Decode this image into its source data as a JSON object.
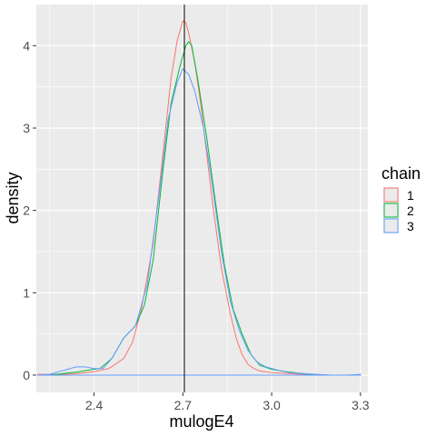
{
  "chart_data": {
    "type": "line",
    "xlabel": "mulogE4",
    "ylabel": "density",
    "xlim": [
      2.205,
      3.325
    ],
    "ylim": [
      -0.21,
      4.5
    ],
    "x_ticks": [
      2.4,
      2.7,
      3.0,
      3.3
    ],
    "x_tick_labels": [
      "2.4",
      "2.7",
      "3.0",
      "3.3"
    ],
    "y_ticks": [
      0,
      1,
      2,
      3,
      4
    ],
    "y_tick_labels": [
      "0",
      "1",
      "2",
      "3",
      "4"
    ],
    "grid": true,
    "legend_title": "chain",
    "legend_position": "right",
    "reference_line": {
      "x": 2.705,
      "color": "#000000"
    },
    "series": [
      {
        "name": "1",
        "color": "#F8766D",
        "x": [
          2.21,
          2.25,
          2.3,
          2.35,
          2.4,
          2.45,
          2.5,
          2.53,
          2.56,
          2.6,
          2.63,
          2.66,
          2.68,
          2.7,
          2.71,
          2.72,
          2.74,
          2.76,
          2.78,
          2.8,
          2.83,
          2.86,
          2.88,
          2.9,
          2.92,
          2.94,
          2.96,
          3.0,
          3.05,
          3.1,
          3.15,
          3.2,
          3.25,
          3.3
        ],
        "y": [
          0.01,
          0.01,
          0.01,
          0.02,
          0.04,
          0.08,
          0.2,
          0.4,
          0.8,
          1.6,
          2.6,
          3.6,
          4.05,
          4.3,
          4.28,
          4.15,
          3.8,
          3.3,
          2.7,
          2.1,
          1.3,
          0.75,
          0.45,
          0.25,
          0.13,
          0.08,
          0.05,
          0.03,
          0.02,
          0.01,
          0.01,
          0.0,
          0.0,
          0.0
        ]
      },
      {
        "name": "2",
        "color": "#00BA38",
        "x": [
          2.25,
          2.3,
          2.35,
          2.38,
          2.42,
          2.46,
          2.5,
          2.54,
          2.57,
          2.6,
          2.63,
          2.66,
          2.69,
          2.71,
          2.72,
          2.73,
          2.75,
          2.78,
          2.81,
          2.84,
          2.87,
          2.9,
          2.93,
          2.96,
          3.0,
          3.05,
          3.1,
          3.15
        ],
        "y": [
          0.0,
          0.02,
          0.04,
          0.06,
          0.08,
          0.2,
          0.45,
          0.6,
          0.85,
          1.4,
          2.4,
          3.3,
          3.75,
          4.0,
          4.05,
          4.0,
          3.6,
          2.9,
          2.1,
          1.35,
          0.8,
          0.5,
          0.25,
          0.12,
          0.07,
          0.04,
          0.02,
          0.0
        ]
      },
      {
        "name": "3",
        "color": "#619CFF",
        "x": [
          2.21,
          2.25,
          2.28,
          2.31,
          2.34,
          2.37,
          2.4,
          2.43,
          2.46,
          2.5,
          2.54,
          2.58,
          2.62,
          2.65,
          2.68,
          2.7,
          2.72,
          2.74,
          2.77,
          2.8,
          2.83,
          2.86,
          2.89,
          2.92,
          2.95,
          2.98,
          3.02,
          3.06,
          3.1,
          3.15,
          3.2,
          3.25,
          3.3
        ],
        "y": [
          0.0,
          0.01,
          0.04,
          0.07,
          0.1,
          0.1,
          0.08,
          0.08,
          0.2,
          0.45,
          0.6,
          1.1,
          2.2,
          3.1,
          3.55,
          3.72,
          3.65,
          3.45,
          3.0,
          2.3,
          1.5,
          0.9,
          0.55,
          0.3,
          0.16,
          0.1,
          0.06,
          0.03,
          0.02,
          0.01,
          0.0,
          0.0,
          0.01
        ]
      }
    ]
  }
}
